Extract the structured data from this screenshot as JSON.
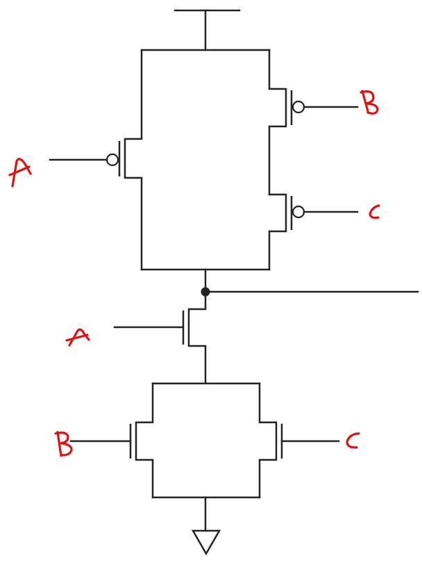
{
  "labels": {
    "pmos_a": "A",
    "pmos_b": "B",
    "pmos_c": "C",
    "nmos_a": "A",
    "nmos_b": "B",
    "nmos_c": "C"
  },
  "colors": {
    "wire": "#222222",
    "handwriting": "#e01010",
    "background": "#ffffff"
  }
}
